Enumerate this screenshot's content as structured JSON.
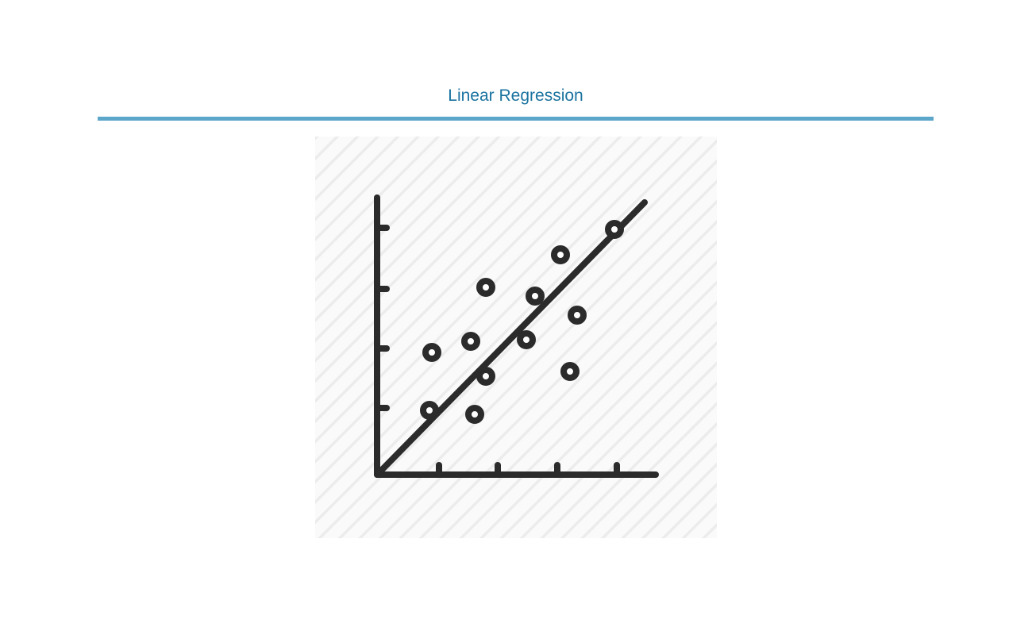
{
  "header": {
    "title": "Linear Regression"
  },
  "icon": {
    "name": "scatter-plot-regression-icon",
    "stroke_color": "#2b2b2b",
    "background_color": "#f4f4f4",
    "hatch_color": "#e8e8e8",
    "rule_color": "#5ba6c9",
    "title_color": "#1a73a0"
  }
}
